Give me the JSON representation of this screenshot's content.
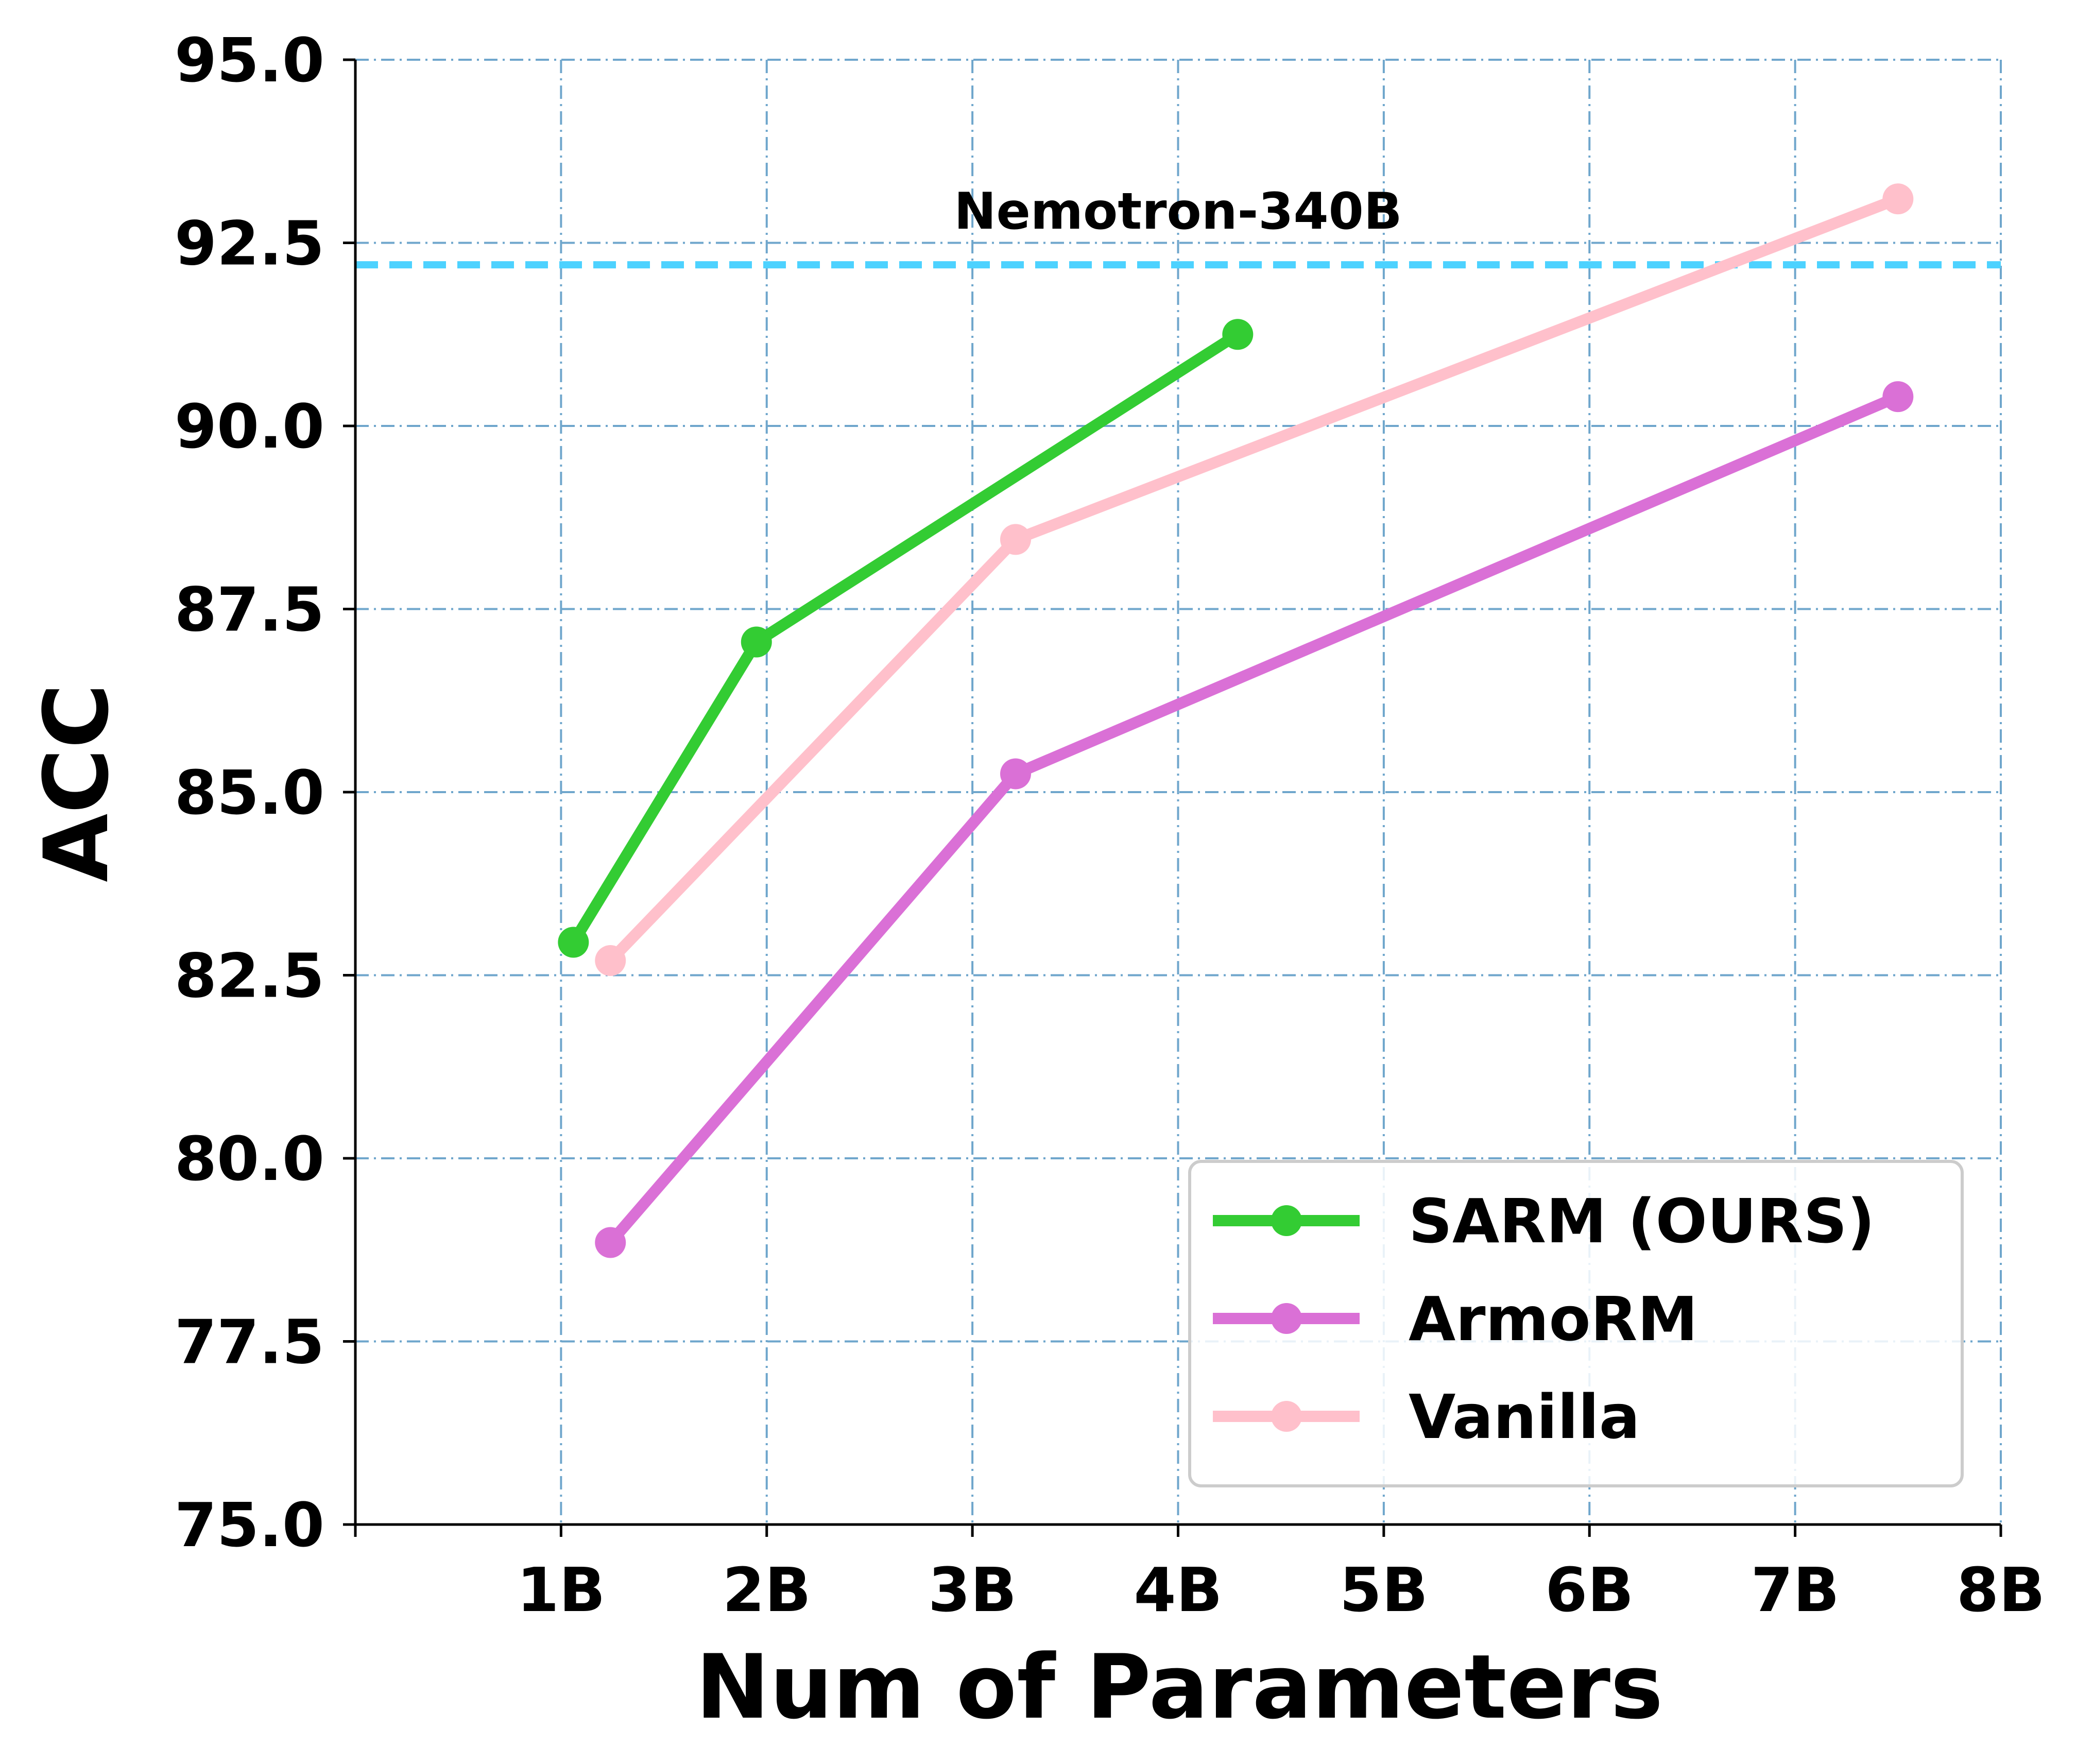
{
  "chart_data": {
    "type": "line",
    "xlabel": "Num of Parameters",
    "ylabel": "ACC",
    "xlim": [
      0,
      8
    ],
    "ylim": [
      75.0,
      95.0
    ],
    "x_ticks": [
      1,
      2,
      3,
      4,
      5,
      6,
      7,
      8
    ],
    "x_tick_labels": [
      "1B",
      "2B",
      "3B",
      "4B",
      "5B",
      "6B",
      "7B",
      "8B"
    ],
    "y_ticks": [
      75.0,
      77.5,
      80.0,
      82.5,
      85.0,
      87.5,
      90.0,
      92.5,
      95.0
    ],
    "y_tick_labels": [
      "75.0",
      "77.5",
      "80.0",
      "82.5",
      "85.0",
      "87.5",
      "90.0",
      "92.5",
      "95.0"
    ],
    "grid": true,
    "legend_position": "lower-right",
    "reference_line": {
      "label": "Nemotron-340B",
      "y": 92.2,
      "color": "#4dd2ff",
      "style": "dashed"
    },
    "series": [
      {
        "name": "SARM (OURS)",
        "color": "#33cc33",
        "points": [
          {
            "x": 1.06,
            "y": 82.95
          },
          {
            "x": 1.95,
            "y": 87.05
          },
          {
            "x": 4.29,
            "y": 91.25
          }
        ]
      },
      {
        "name": "ArmoRM",
        "color": "#da70d6",
        "points": [
          {
            "x": 1.24,
            "y": 78.85
          },
          {
            "x": 3.21,
            "y": 85.25
          },
          {
            "x": 7.5,
            "y": 90.4
          }
        ]
      },
      {
        "name": "Vanilla",
        "color": "#ffc0cb",
        "points": [
          {
            "x": 1.24,
            "y": 82.7
          },
          {
            "x": 3.21,
            "y": 88.45
          },
          {
            "x": 7.5,
            "y": 93.1
          }
        ]
      }
    ]
  }
}
